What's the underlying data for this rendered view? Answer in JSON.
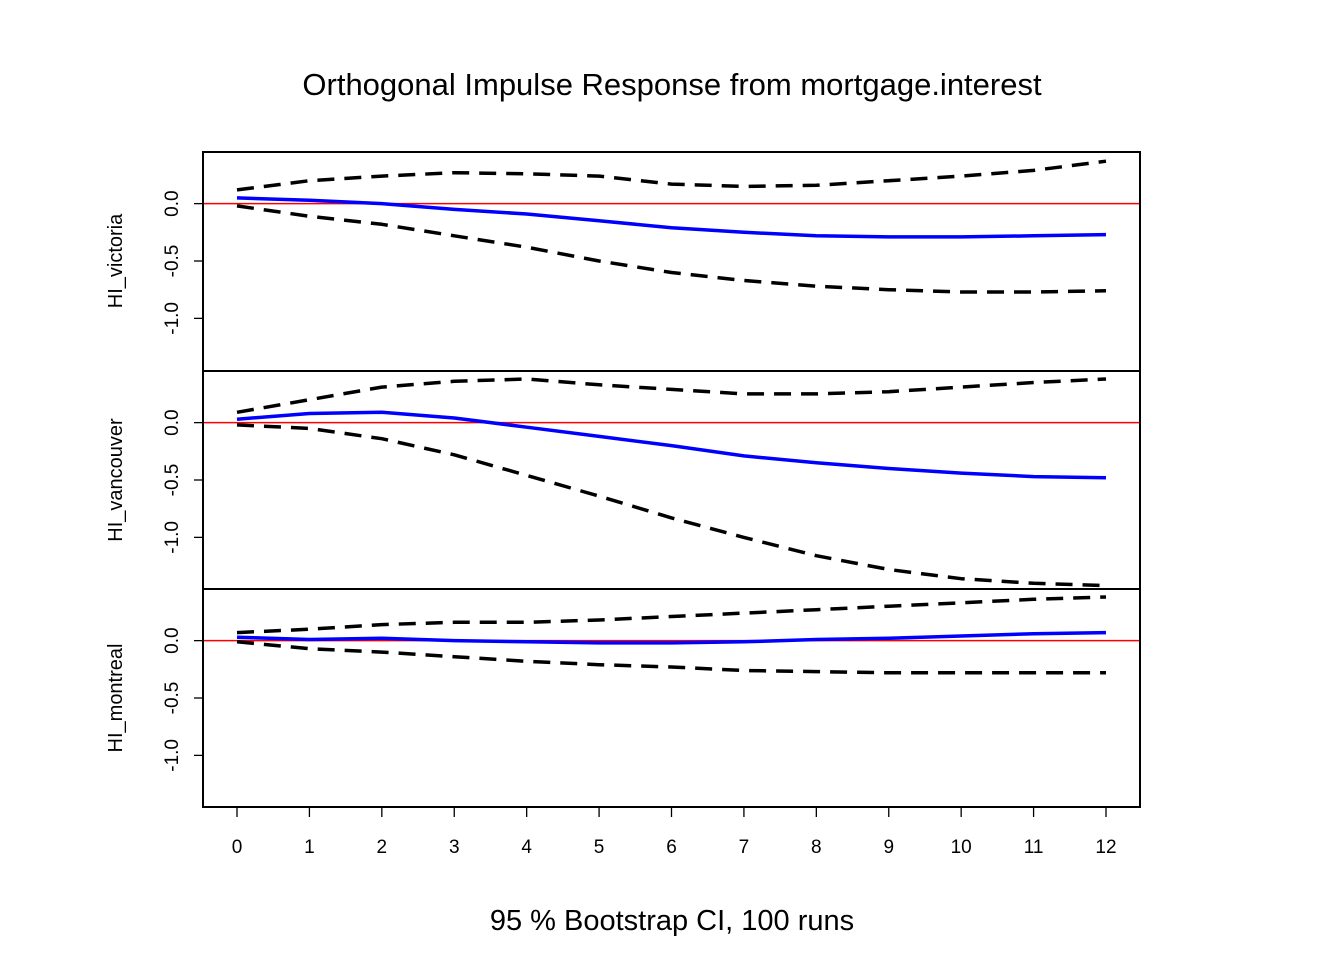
{
  "chart_data": {
    "type": "line",
    "title": "Orthogonal Impulse Response from mortgage.interest",
    "xlabel": "95 % Bootstrap CI,  100 runs",
    "x": [
      0,
      1,
      2,
      3,
      4,
      5,
      6,
      7,
      8,
      9,
      10,
      11,
      12
    ],
    "x_ticks": [
      "0",
      "1",
      "2",
      "3",
      "4",
      "5",
      "6",
      "7",
      "8",
      "9",
      "10",
      "11",
      "12"
    ],
    "ylim": [
      -1.45,
      0.45
    ],
    "y_ticks": [
      "0.0",
      "-0.5",
      "-1.0"
    ],
    "y_tick_values": [
      0.0,
      -0.5,
      -1.0
    ],
    "zero_line_color": "#ff0000",
    "response_color": "#0000ff",
    "ci_color": "#000000",
    "panels": [
      {
        "ylabel": "HI_victoria",
        "series": [
          {
            "role": "response",
            "values": [
              0.05,
              0.03,
              0.0,
              -0.05,
              -0.09,
              -0.15,
              -0.21,
              -0.25,
              -0.28,
              -0.29,
              -0.29,
              -0.28,
              -0.27
            ]
          },
          {
            "role": "upper",
            "values": [
              0.12,
              0.2,
              0.24,
              0.27,
              0.26,
              0.24,
              0.17,
              0.15,
              0.16,
              0.2,
              0.24,
              0.29,
              0.37
            ]
          },
          {
            "role": "lower",
            "values": [
              -0.02,
              -0.11,
              -0.18,
              -0.28,
              -0.38,
              -0.5,
              -0.6,
              -0.67,
              -0.72,
              -0.75,
              -0.77,
              -0.77,
              -0.76
            ]
          }
        ]
      },
      {
        "ylabel": "HI_vancouver",
        "series": [
          {
            "role": "response",
            "values": [
              0.03,
              0.08,
              0.09,
              0.04,
              -0.04,
              -0.12,
              -0.2,
              -0.29,
              -0.35,
              -0.4,
              -0.44,
              -0.47,
              -0.48
            ]
          },
          {
            "role": "upper",
            "values": [
              0.09,
              0.2,
              0.31,
              0.36,
              0.38,
              0.33,
              0.29,
              0.25,
              0.25,
              0.27,
              0.31,
              0.35,
              0.38
            ]
          },
          {
            "role": "lower",
            "values": [
              -0.02,
              -0.05,
              -0.14,
              -0.28,
              -0.46,
              -0.64,
              -0.83,
              -1.0,
              -1.16,
              -1.28,
              -1.36,
              -1.4,
              -1.42
            ]
          }
        ]
      },
      {
        "ylabel": "HI_montreal",
        "series": [
          {
            "role": "response",
            "values": [
              0.03,
              0.01,
              0.02,
              0.0,
              -0.01,
              -0.02,
              -0.02,
              -0.01,
              0.01,
              0.02,
              0.04,
              0.06,
              0.07
            ]
          },
          {
            "role": "upper",
            "values": [
              0.07,
              0.1,
              0.14,
              0.16,
              0.16,
              0.18,
              0.21,
              0.24,
              0.27,
              0.3,
              0.33,
              0.36,
              0.38
            ]
          },
          {
            "role": "lower",
            "values": [
              -0.01,
              -0.07,
              -0.1,
              -0.14,
              -0.18,
              -0.21,
              -0.23,
              -0.26,
              -0.27,
              -0.28,
              -0.28,
              -0.28,
              -0.28
            ]
          }
        ]
      }
    ]
  }
}
